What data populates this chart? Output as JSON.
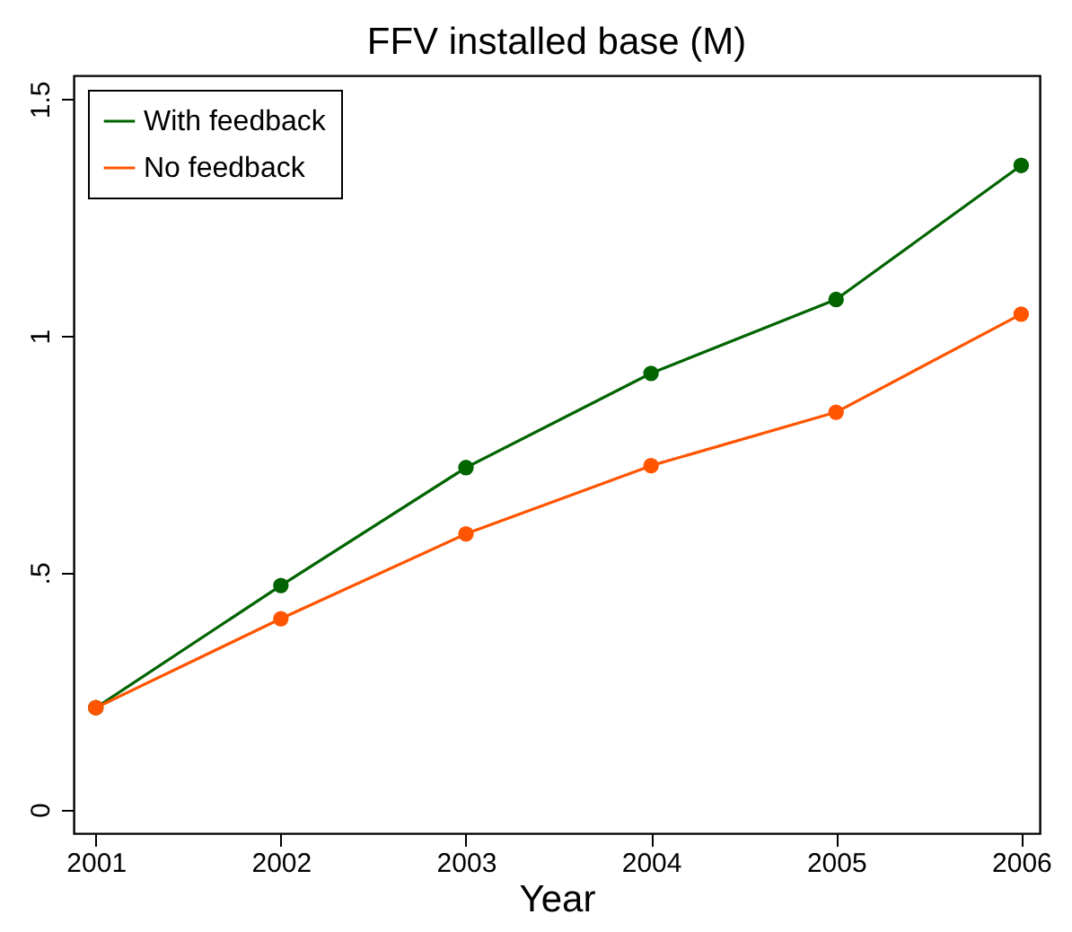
{
  "chart_data": {
    "type": "line",
    "title": "FFV installed base (M)",
    "xlabel": "Year",
    "x": [
      2001,
      2002,
      2003,
      2004,
      2005,
      2006
    ],
    "series": [
      {
        "name": "With feedback",
        "color": "#006400",
        "values": [
          0.215,
          0.473,
          0.722,
          0.921,
          1.077,
          1.36
        ]
      },
      {
        "name": "No feedback",
        "color": "#ff5500",
        "values": [
          0.215,
          0.403,
          0.582,
          0.726,
          0.839,
          1.046
        ]
      }
    ],
    "xlim": [
      2000.88,
      2006.1
    ],
    "xticks": [
      2001,
      2002,
      2003,
      2004,
      2005,
      2006
    ],
    "ylim": [
      -0.05,
      1.55
    ],
    "yticks": [
      0,
      {
        "value": 0.5,
        "label": ".5"
      },
      1,
      1.5
    ],
    "grid": false,
    "legend": "top left",
    "marker": "circle",
    "line_style": "solid"
  }
}
